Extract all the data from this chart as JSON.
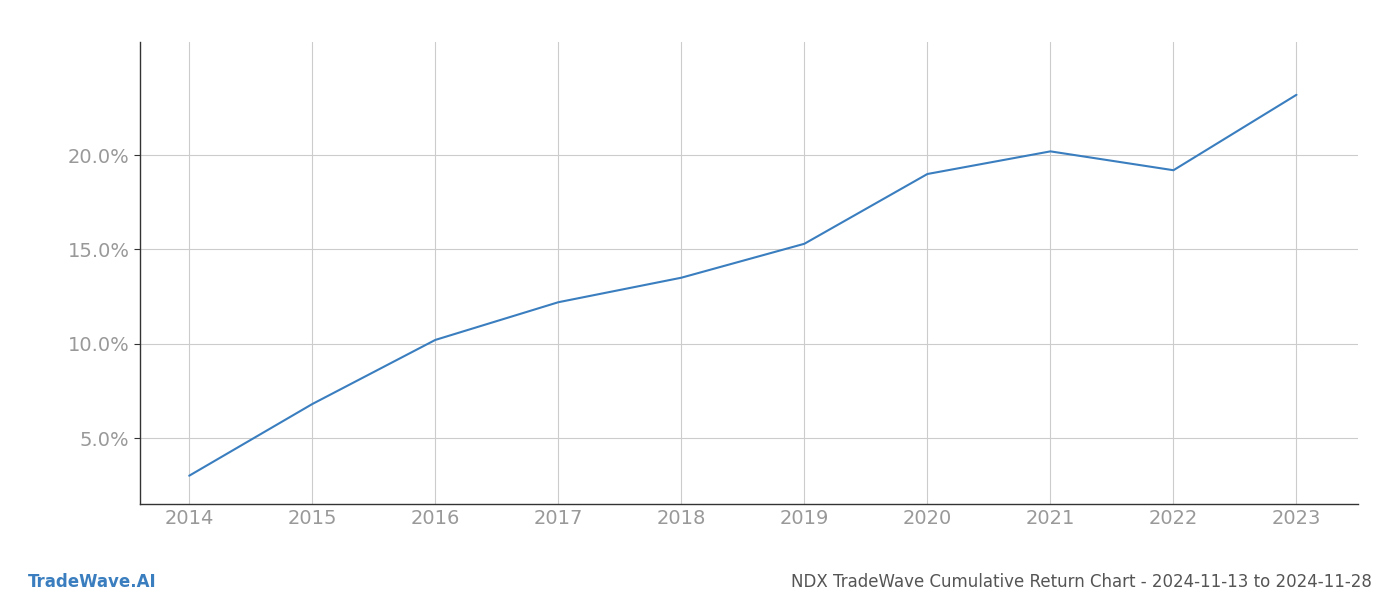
{
  "x_years": [
    2014,
    2015,
    2016,
    2017,
    2018,
    2019,
    2020,
    2021,
    2022,
    2023
  ],
  "y_values": [
    3.0,
    6.8,
    10.2,
    12.2,
    13.5,
    15.3,
    19.0,
    20.2,
    19.2,
    23.2
  ],
  "line_color": "#3a7ebf",
  "line_width": 1.5,
  "background_color": "#ffffff",
  "grid_color": "#cccccc",
  "ylabel_ticks": [
    5.0,
    10.0,
    15.0,
    20.0
  ],
  "xlabel_ticks": [
    2014,
    2015,
    2016,
    2017,
    2018,
    2019,
    2020,
    2021,
    2022,
    2023
  ],
  "xlim": [
    2013.6,
    2023.5
  ],
  "ylim": [
    1.5,
    26.0
  ],
  "footer_left": "TradeWave.AI",
  "footer_right": "NDX TradeWave Cumulative Return Chart - 2024-11-13 to 2024-11-28",
  "tick_color": "#999999",
  "tick_fontsize": 14,
  "footer_fontsize": 12,
  "footer_left_color": "#3a7ebf",
  "footer_right_color": "#555555",
  "spine_color": "#333333"
}
